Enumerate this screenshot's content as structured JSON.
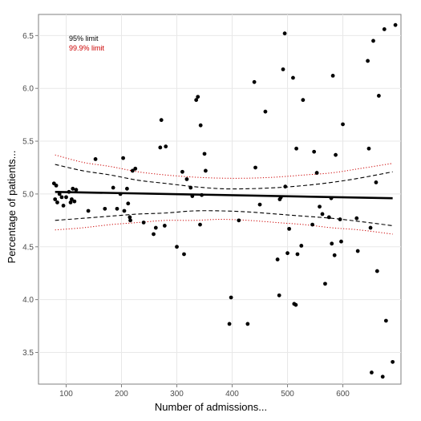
{
  "chart_data": {
    "type": "scatter",
    "title": "",
    "xlabel": "Number of admissions...",
    "ylabel": "Percentage of patients...",
    "xlim": [
      50,
      705
    ],
    "ylim": [
      3.2,
      6.7
    ],
    "xticks": [
      100,
      200,
      300,
      400,
      500,
      600
    ],
    "yticks": [
      3.5,
      4.0,
      4.5,
      5.0,
      5.5,
      6.0,
      6.5
    ],
    "grid": true,
    "legend_position": "top-left",
    "legend": [
      {
        "label": "95% limit",
        "color": "#000000"
      },
      {
        "label": "99.9% limit",
        "color": "#cc0000"
      }
    ],
    "center_line": 5.02,
    "center_line_end": 4.96,
    "funnel": {
      "x": [
        80,
        130,
        180,
        230,
        280,
        330,
        380,
        430,
        480,
        530,
        580,
        630,
        690
      ],
      "upper95": [
        5.28,
        5.22,
        5.18,
        5.13,
        5.1,
        5.07,
        5.05,
        5.05,
        5.06,
        5.08,
        5.11,
        5.15,
        5.21
      ],
      "lower95": [
        4.75,
        4.77,
        4.79,
        4.81,
        4.82,
        4.84,
        4.84,
        4.83,
        4.81,
        4.79,
        4.77,
        4.74,
        4.7
      ],
      "upper999": [
        5.37,
        5.3,
        5.26,
        5.21,
        5.18,
        5.16,
        5.15,
        5.15,
        5.16,
        5.18,
        5.2,
        5.24,
        5.29
      ],
      "lower999": [
        4.66,
        4.68,
        4.71,
        4.73,
        4.75,
        4.75,
        4.76,
        4.75,
        4.73,
        4.71,
        4.68,
        4.66,
        4.62
      ]
    },
    "points": [
      [
        78,
        5.1
      ],
      [
        80,
        4.95
      ],
      [
        82,
        5.08
      ],
      [
        84,
        4.92
      ],
      [
        88,
        5.0
      ],
      [
        92,
        4.97
      ],
      [
        95,
        4.89
      ],
      [
        100,
        4.97
      ],
      [
        105,
        5.02
      ],
      [
        108,
        4.92
      ],
      [
        110,
        4.95
      ],
      [
        112,
        5.05
      ],
      [
        115,
        4.93
      ],
      [
        118,
        5.04
      ],
      [
        140,
        4.84
      ],
      [
        153,
        5.33
      ],
      [
        170,
        4.86
      ],
      [
        185,
        5.06
      ],
      [
        192,
        4.86
      ],
      [
        198,
        5.0
      ],
      [
        203,
        5.34
      ],
      [
        205,
        4.84
      ],
      [
        210,
        5.05
      ],
      [
        212,
        4.91
      ],
      [
        215,
        4.78
      ],
      [
        216,
        4.75
      ],
      [
        220,
        5.22
      ],
      [
        225,
        5.24
      ],
      [
        240,
        4.73
      ],
      [
        258,
        4.62
      ],
      [
        262,
        4.68
      ],
      [
        270,
        5.44
      ],
      [
        272,
        5.7
      ],
      [
        278,
        4.7
      ],
      [
        280,
        5.45
      ],
      [
        300,
        4.5
      ],
      [
        310,
        5.21
      ],
      [
        313,
        4.43
      ],
      [
        318,
        5.14
      ],
      [
        325,
        5.06
      ],
      [
        328,
        4.98
      ],
      [
        335,
        5.89
      ],
      [
        338,
        5.92
      ],
      [
        342,
        4.71
      ],
      [
        343,
        5.65
      ],
      [
        345,
        4.99
      ],
      [
        350,
        5.38
      ],
      [
        352,
        5.22
      ],
      [
        395,
        3.77
      ],
      [
        398,
        4.02
      ],
      [
        412,
        4.75
      ],
      [
        428,
        3.77
      ],
      [
        440,
        6.06
      ],
      [
        442,
        5.25
      ],
      [
        450,
        4.9
      ],
      [
        460,
        5.78
      ],
      [
        482,
        4.38
      ],
      [
        485,
        4.04
      ],
      [
        486,
        4.95
      ],
      [
        488,
        4.97
      ],
      [
        492,
        6.18
      ],
      [
        495,
        6.52
      ],
      [
        496,
        5.07
      ],
      [
        500,
        4.44
      ],
      [
        503,
        4.67
      ],
      [
        510,
        6.1
      ],
      [
        512,
        3.96
      ],
      [
        515,
        3.95
      ],
      [
        516,
        5.43
      ],
      [
        518,
        4.43
      ],
      [
        525,
        4.51
      ],
      [
        528,
        5.89
      ],
      [
        545,
        4.71
      ],
      [
        548,
        5.4
      ],
      [
        553,
        5.2
      ],
      [
        558,
        4.88
      ],
      [
        563,
        4.81
      ],
      [
        568,
        4.15
      ],
      [
        575,
        4.78
      ],
      [
        579,
        4.96
      ],
      [
        580,
        4.53
      ],
      [
        582,
        6.12
      ],
      [
        585,
        4.42
      ],
      [
        587,
        5.37
      ],
      [
        595,
        4.76
      ],
      [
        597,
        4.55
      ],
      [
        600,
        5.66
      ],
      [
        625,
        4.77
      ],
      [
        627,
        4.46
      ],
      [
        645,
        6.26
      ],
      [
        647,
        5.43
      ],
      [
        650,
        4.68
      ],
      [
        652,
        3.31
      ],
      [
        655,
        6.45
      ],
      [
        660,
        5.11
      ],
      [
        662,
        4.27
      ],
      [
        665,
        5.93
      ],
      [
        672,
        3.27
      ],
      [
        675,
        6.56
      ],
      [
        678,
        3.8
      ],
      [
        690,
        3.41
      ],
      [
        695,
        6.6
      ]
    ]
  }
}
